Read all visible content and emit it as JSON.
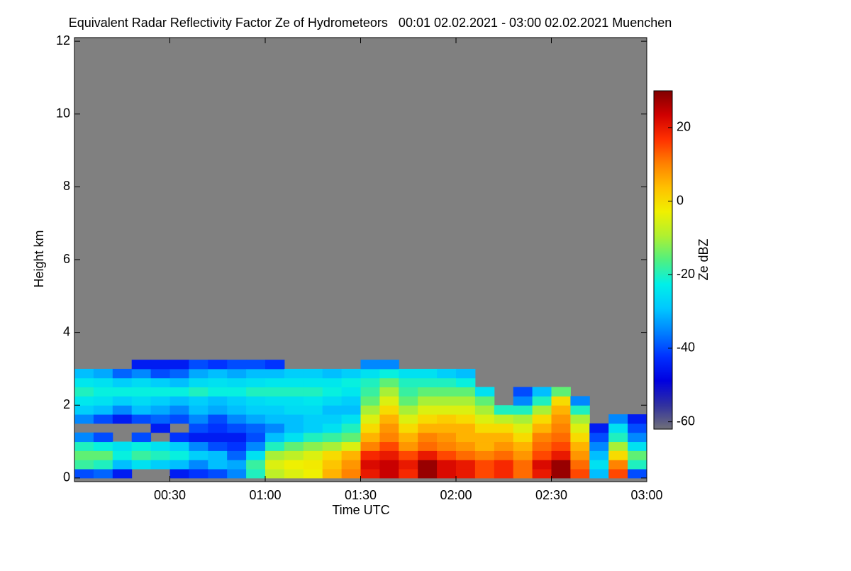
{
  "chart_data": {
    "type": "heatmap",
    "title": "Equivalent Radar Reflectivity Factor Ze of Hydrometeors   00:01 02.02.2021 - 03:00 02.02.2021 Muenchen",
    "x_label": "Time UTC",
    "y_label": "Height km",
    "colorbar_label": "Ze dBZ",
    "xlim": [
      1,
      181
    ],
    "xticks": [
      {
        "value": 31,
        "label": "00:30"
      },
      {
        "value": 61,
        "label": "01:00"
      },
      {
        "value": 91,
        "label": "01:30"
      },
      {
        "value": 121,
        "label": "02:00"
      },
      {
        "value": 151,
        "label": "02:30"
      },
      {
        "value": 181,
        "label": "03:00"
      }
    ],
    "ylim": [
      -0.1,
      12.1
    ],
    "yticks": [
      0,
      2,
      4,
      6,
      8,
      10,
      12
    ],
    "zlim": [
      -62,
      30
    ],
    "zticks": [
      -60,
      -40,
      -20,
      0,
      20
    ],
    "missing_color": "#808080",
    "colorscale": [
      "#707078",
      "#3030a0",
      "#0000e0",
      "#0030ff",
      "#0080ff",
      "#00c8ff",
      "#00f0e8",
      "#50f080",
      "#b0f030",
      "#f0f000",
      "#ffc000",
      "#ff8000",
      "#ff3000",
      "#d00000",
      "#800000"
    ],
    "xbins": [
      1,
      7,
      13,
      19,
      25,
      31,
      37,
      43,
      49,
      55,
      61,
      67,
      73,
      79,
      85,
      91,
      97,
      103,
      109,
      115,
      121,
      127,
      133,
      139,
      145,
      151,
      157,
      163,
      169,
      175,
      181
    ],
    "ybins": [
      0,
      0.25,
      0.5,
      0.75,
      1,
      1.25,
      1.5,
      1.75,
      2,
      2.25,
      2.5,
      2.75,
      3,
      3.25,
      3.5
    ],
    "z": [
      [
        -40,
        -18,
        -15,
        -20,
        -35,
        null,
        -35,
        -28,
        -24,
        -20,
        -24,
        -30,
        null,
        null
      ],
      [
        -38,
        -20,
        -15,
        -22,
        -40,
        null,
        -40,
        -30,
        -25,
        -22,
        -25,
        -32,
        null,
        null
      ],
      [
        -45,
        -30,
        -22,
        -25,
        null,
        null,
        -45,
        -35,
        -28,
        -22,
        -28,
        -38,
        null,
        null
      ],
      [
        null,
        -25,
        -18,
        -22,
        -40,
        null,
        -40,
        -30,
        -26,
        -22,
        -26,
        -35,
        -45,
        null
      ],
      [
        null,
        -28,
        -20,
        -25,
        null,
        -45,
        -38,
        -32,
        -28,
        -22,
        -28,
        -40,
        -45,
        null
      ],
      [
        -45,
        -30,
        -22,
        -28,
        -42,
        null,
        -40,
        -35,
        -30,
        -22,
        -30,
        -38,
        -45,
        null
      ],
      [
        -42,
        -35,
        -28,
        -35,
        -45,
        -40,
        -35,
        -30,
        -28,
        -20,
        -26,
        -32,
        -40,
        null
      ],
      [
        -40,
        -30,
        -30,
        -40,
        -45,
        -42,
        -40,
        -32,
        -30,
        -22,
        -25,
        -30,
        -42,
        null
      ],
      [
        -35,
        -32,
        -38,
        -42,
        -45,
        -40,
        -35,
        -30,
        -28,
        -22,
        -26,
        -32,
        -40,
        null
      ],
      [
        -20,
        -18,
        -25,
        -35,
        -40,
        -38,
        -32,
        -28,
        -26,
        -20,
        -25,
        -30,
        -40,
        null
      ],
      [
        -8,
        -5,
        -10,
        -20,
        -30,
        -35,
        -30,
        -28,
        -25,
        -20,
        -24,
        -30,
        -42,
        null
      ],
      [
        -5,
        -3,
        -8,
        -15,
        -25,
        -30,
        -30,
        -26,
        -25,
        -20,
        -24,
        -28,
        null,
        null
      ],
      [
        -3,
        -2,
        -5,
        -12,
        -20,
        -28,
        -28,
        -26,
        -24,
        -20,
        -24,
        -28,
        null,
        null
      ],
      [
        5,
        3,
        0,
        -10,
        -18,
        -25,
        -28,
        -30,
        -26,
        -22,
        -24,
        -30,
        null,
        null
      ],
      [
        10,
        8,
        5,
        -5,
        -15,
        -20,
        -25,
        -30,
        -28,
        -24,
        -22,
        -28,
        null,
        null
      ],
      [
        20,
        22,
        18,
        10,
        5,
        0,
        -5,
        -10,
        -15,
        -18,
        -20,
        -25,
        -35,
        null
      ],
      [
        24,
        24,
        20,
        15,
        10,
        8,
        5,
        0,
        -5,
        -10,
        -15,
        -22,
        -35,
        null
      ],
      [
        18,
        20,
        15,
        8,
        5,
        0,
        -5,
        -10,
        -15,
        -18,
        -20,
        -25,
        null,
        null
      ],
      [
        28,
        28,
        20,
        12,
        10,
        5,
        0,
        -5,
        -10,
        -15,
        -20,
        -25,
        null,
        null
      ],
      [
        22,
        22,
        15,
        10,
        8,
        5,
        2,
        -5,
        -10,
        -15,
        -20,
        -28,
        null,
        null
      ],
      [
        20,
        20,
        12,
        8,
        5,
        5,
        0,
        -5,
        -10,
        -15,
        -22,
        -30,
        null,
        null
      ],
      [
        15,
        15,
        10,
        5,
        5,
        0,
        -5,
        -10,
        -15,
        -25,
        null,
        null,
        null,
        null
      ],
      [
        18,
        18,
        12,
        8,
        5,
        0,
        -8,
        -20,
        null,
        null,
        null,
        null,
        null,
        null
      ],
      [
        12,
        12,
        8,
        5,
        0,
        -5,
        -10,
        -20,
        -35,
        -40,
        null,
        null,
        null,
        null
      ],
      [
        20,
        22,
        15,
        12,
        10,
        5,
        0,
        -10,
        -20,
        -30,
        null,
        null,
        null,
        null
      ],
      [
        28,
        28,
        20,
        15,
        12,
        10,
        8,
        5,
        0,
        -15,
        null,
        null,
        null,
        null
      ],
      [
        15,
        12,
        8,
        5,
        0,
        -5,
        -10,
        -20,
        -35,
        null,
        null,
        null,
        null,
        null
      ],
      [
        -30,
        -25,
        -30,
        -35,
        -40,
        -45,
        null,
        null,
        null,
        null,
        null,
        null,
        null,
        null
      ],
      [
        15,
        10,
        0,
        -10,
        -20,
        -25,
        -35,
        null,
        null,
        null,
        null,
        null,
        null,
        null
      ],
      [
        -40,
        -20,
        -15,
        -25,
        -35,
        -40,
        -45,
        null,
        null,
        null,
        null,
        null,
        null,
        null
      ]
    ]
  }
}
